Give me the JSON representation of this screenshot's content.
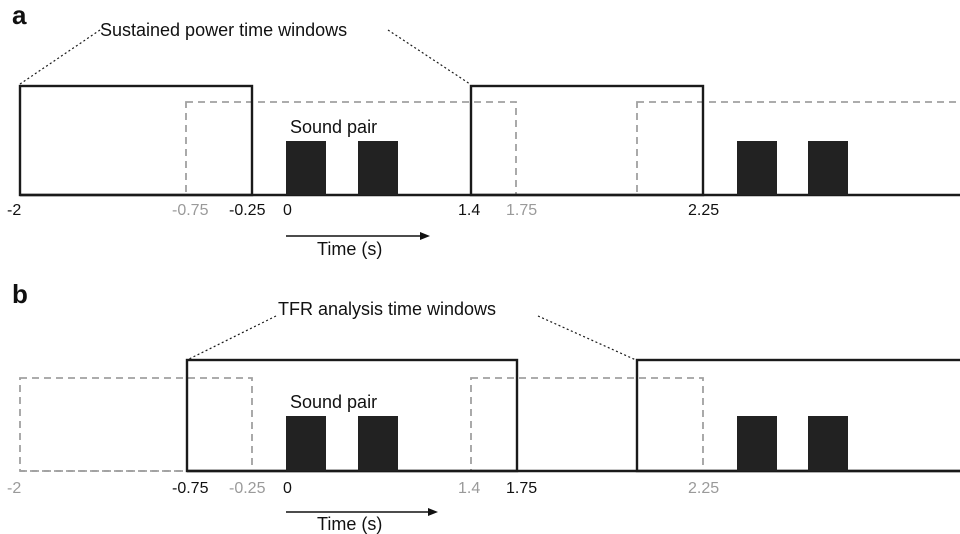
{
  "panel_a": {
    "letter": "a",
    "callout": "Sustained power time windows",
    "sound_label": "Sound pair",
    "time_label": "Time (s)",
    "ticks": [
      {
        "text": "-2",
        "tone": "black"
      },
      {
        "text": "-0.75",
        "tone": "gray"
      },
      {
        "text": "-0.25",
        "tone": "black"
      },
      {
        "text": "0",
        "tone": "black"
      },
      {
        "text": "1.4",
        "tone": "black"
      },
      {
        "text": "1.75",
        "tone": "gray"
      },
      {
        "text": "2.25",
        "tone": "black"
      }
    ]
  },
  "panel_b": {
    "letter": "b",
    "callout": "TFR analysis time windows",
    "sound_label": "Sound pair",
    "time_label": "Time (s)",
    "ticks": [
      {
        "text": "-2",
        "tone": "gray"
      },
      {
        "text": "-0.75",
        "tone": "black"
      },
      {
        "text": "-0.25",
        "tone": "gray"
      },
      {
        "text": "0",
        "tone": "black"
      },
      {
        "text": "1.4",
        "tone": "gray"
      },
      {
        "text": "1.75",
        "tone": "black"
      },
      {
        "text": "2.25",
        "tone": "gray"
      }
    ]
  },
  "colors": {
    "solid_window": "#1a1a1a",
    "dashed_window": "#a0a0a0",
    "sound_block": "#222222",
    "gray_text": "#9a9a9a"
  }
}
